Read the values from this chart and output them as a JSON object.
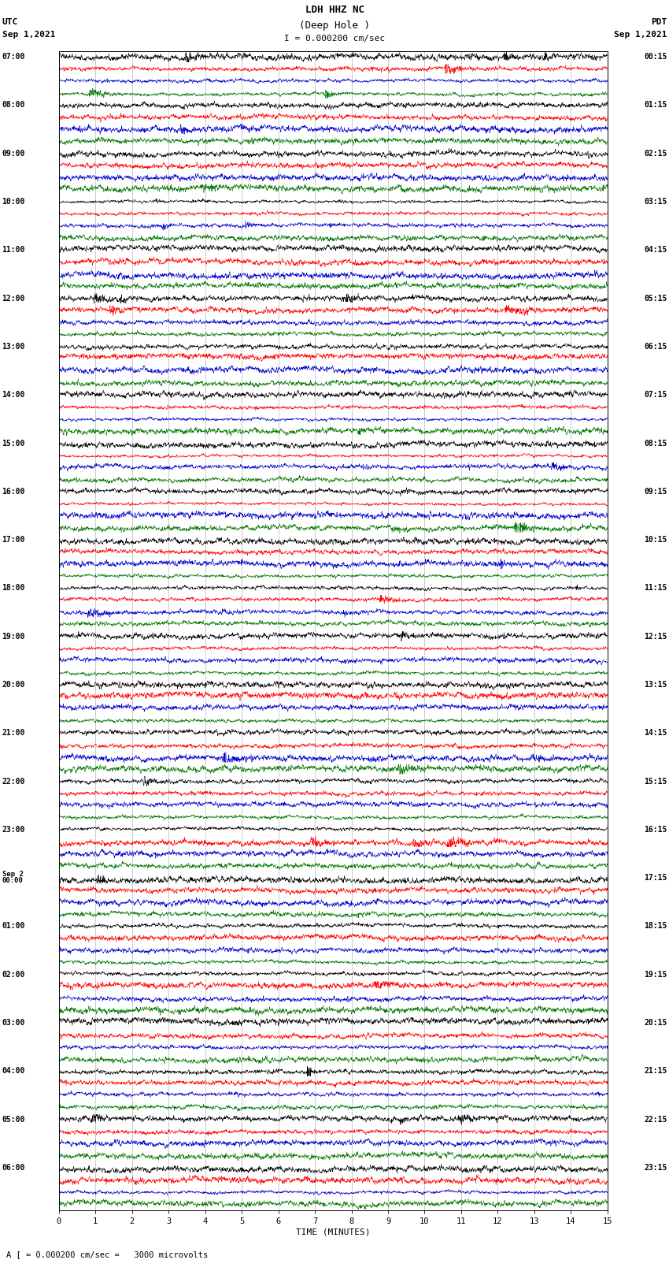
{
  "title_line1": "LDH HHZ NC",
  "title_line2": "(Deep Hole )",
  "title_line3": "I = 0.000200 cm/sec",
  "label_left_top": "UTC",
  "label_left_date": "Sep 1,2021",
  "label_right_top": "PDT",
  "label_right_date": "Sep 1,2021",
  "footer": "A [ = 0.000200 cm/sec =   3000 microvolts",
  "xlabel": "TIME (MINUTES)",
  "colors": [
    "#000000",
    "#ff0000",
    "#0000cc",
    "#007700"
  ],
  "bg_color": "#ffffff",
  "n_colors": 4,
  "minutes_per_trace": 15,
  "left_times_utc": [
    "07:00",
    "",
    "",
    "",
    "08:00",
    "",
    "",
    "",
    "09:00",
    "",
    "",
    "",
    "10:00",
    "",
    "",
    "",
    "11:00",
    "",
    "",
    "",
    "12:00",
    "",
    "",
    "",
    "13:00",
    "",
    "",
    "",
    "14:00",
    "",
    "",
    "",
    "15:00",
    "",
    "",
    "",
    "16:00",
    "",
    "",
    "",
    "17:00",
    "",
    "",
    "",
    "18:00",
    "",
    "",
    "",
    "19:00",
    "",
    "",
    "",
    "20:00",
    "",
    "",
    "",
    "21:00",
    "",
    "",
    "",
    "22:00",
    "",
    "",
    "",
    "23:00",
    "",
    "",
    "",
    "Sep 2\n00:00",
    "",
    "",
    "",
    "01:00",
    "",
    "",
    "",
    "02:00",
    "",
    "",
    "",
    "03:00",
    "",
    "",
    "",
    "04:00",
    "",
    "",
    "",
    "05:00",
    "",
    "",
    "",
    "06:00",
    "",
    "",
    ""
  ],
  "right_times_pdt": [
    "00:15",
    "",
    "",
    "",
    "01:15",
    "",
    "",
    "",
    "02:15",
    "",
    "",
    "",
    "03:15",
    "",
    "",
    "",
    "04:15",
    "",
    "",
    "",
    "05:15",
    "",
    "",
    "",
    "06:15",
    "",
    "",
    "",
    "07:15",
    "",
    "",
    "",
    "08:15",
    "",
    "",
    "",
    "09:15",
    "",
    "",
    "",
    "10:15",
    "",
    "",
    "",
    "11:15",
    "",
    "",
    "",
    "12:15",
    "",
    "",
    "",
    "13:15",
    "",
    "",
    "",
    "14:15",
    "",
    "",
    "",
    "15:15",
    "",
    "",
    "",
    "16:15",
    "",
    "",
    "",
    "17:15",
    "",
    "",
    "",
    "18:15",
    "",
    "",
    "",
    "19:15",
    "",
    "",
    "",
    "20:15",
    "",
    "",
    "",
    "21:15",
    "",
    "",
    "",
    "22:15",
    "",
    "",
    "",
    "23:15",
    "",
    "",
    ""
  ],
  "vline_color": "#888888",
  "vline_alpha": 0.6,
  "trace_amplitude": 0.42,
  "noise_base": 0.1,
  "lw": 0.4
}
